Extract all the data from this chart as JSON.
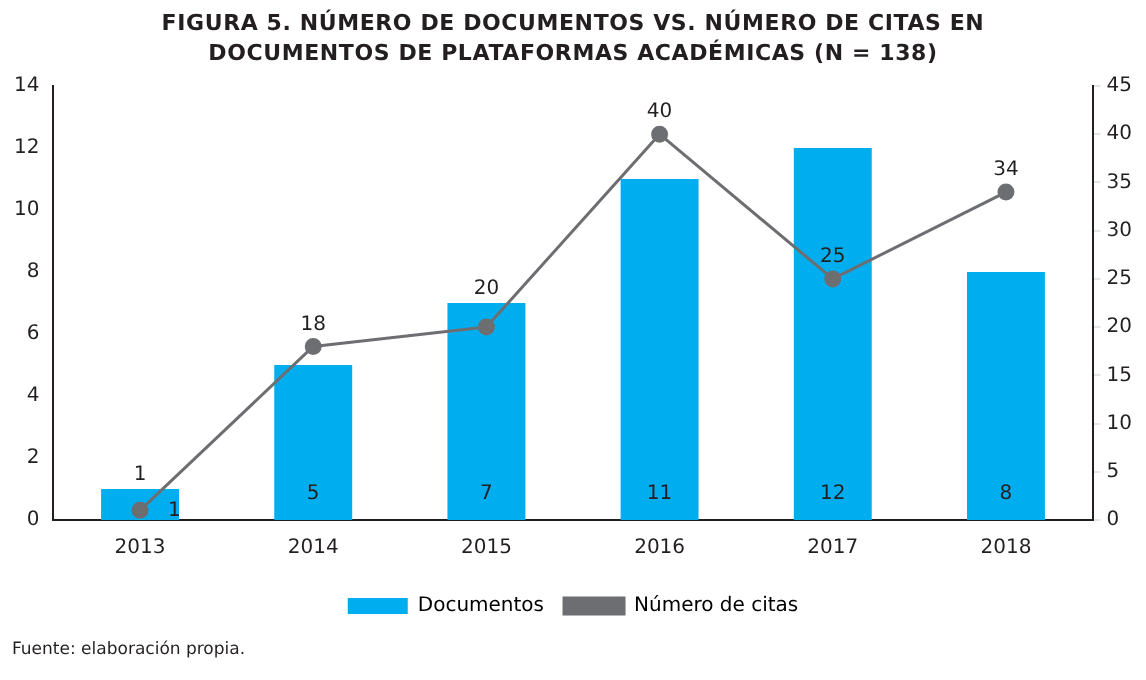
{
  "chart_data": {
    "type": "bar",
    "title": "FIGURA 5. NÚMERO DE DOCUMENTOS VS. NÚMERO DE CITAS EN DOCUMENTOS DE PLATAFORMAS ACADÉMICAS (N = 138)",
    "categories": [
      "2013",
      "2014",
      "2015",
      "2016",
      "2017",
      "2018"
    ],
    "series": [
      {
        "name": "Documentos",
        "color": "#00aeef",
        "values": [
          1,
          5,
          7,
          11,
          12,
          8
        ]
      },
      {
        "name": "Número de citas",
        "type": "line",
        "axis": "y2",
        "color": "#6d6e71",
        "values": [
          1,
          18,
          20,
          40,
          25,
          34
        ]
      }
    ],
    "ylim": [
      0,
      14
    ],
    "yticks": [
      0,
      2,
      4,
      6,
      8,
      10,
      12,
      14
    ],
    "y2lim": [
      0,
      45
    ],
    "y2ticks": [
      0,
      5,
      10,
      15,
      20,
      25,
      30,
      35,
      40,
      45
    ],
    "data_labels": true,
    "legend": "bottom",
    "marker": "circle",
    "grid": false,
    "annotations": [
      "Fuente: elaboración propia."
    ]
  }
}
